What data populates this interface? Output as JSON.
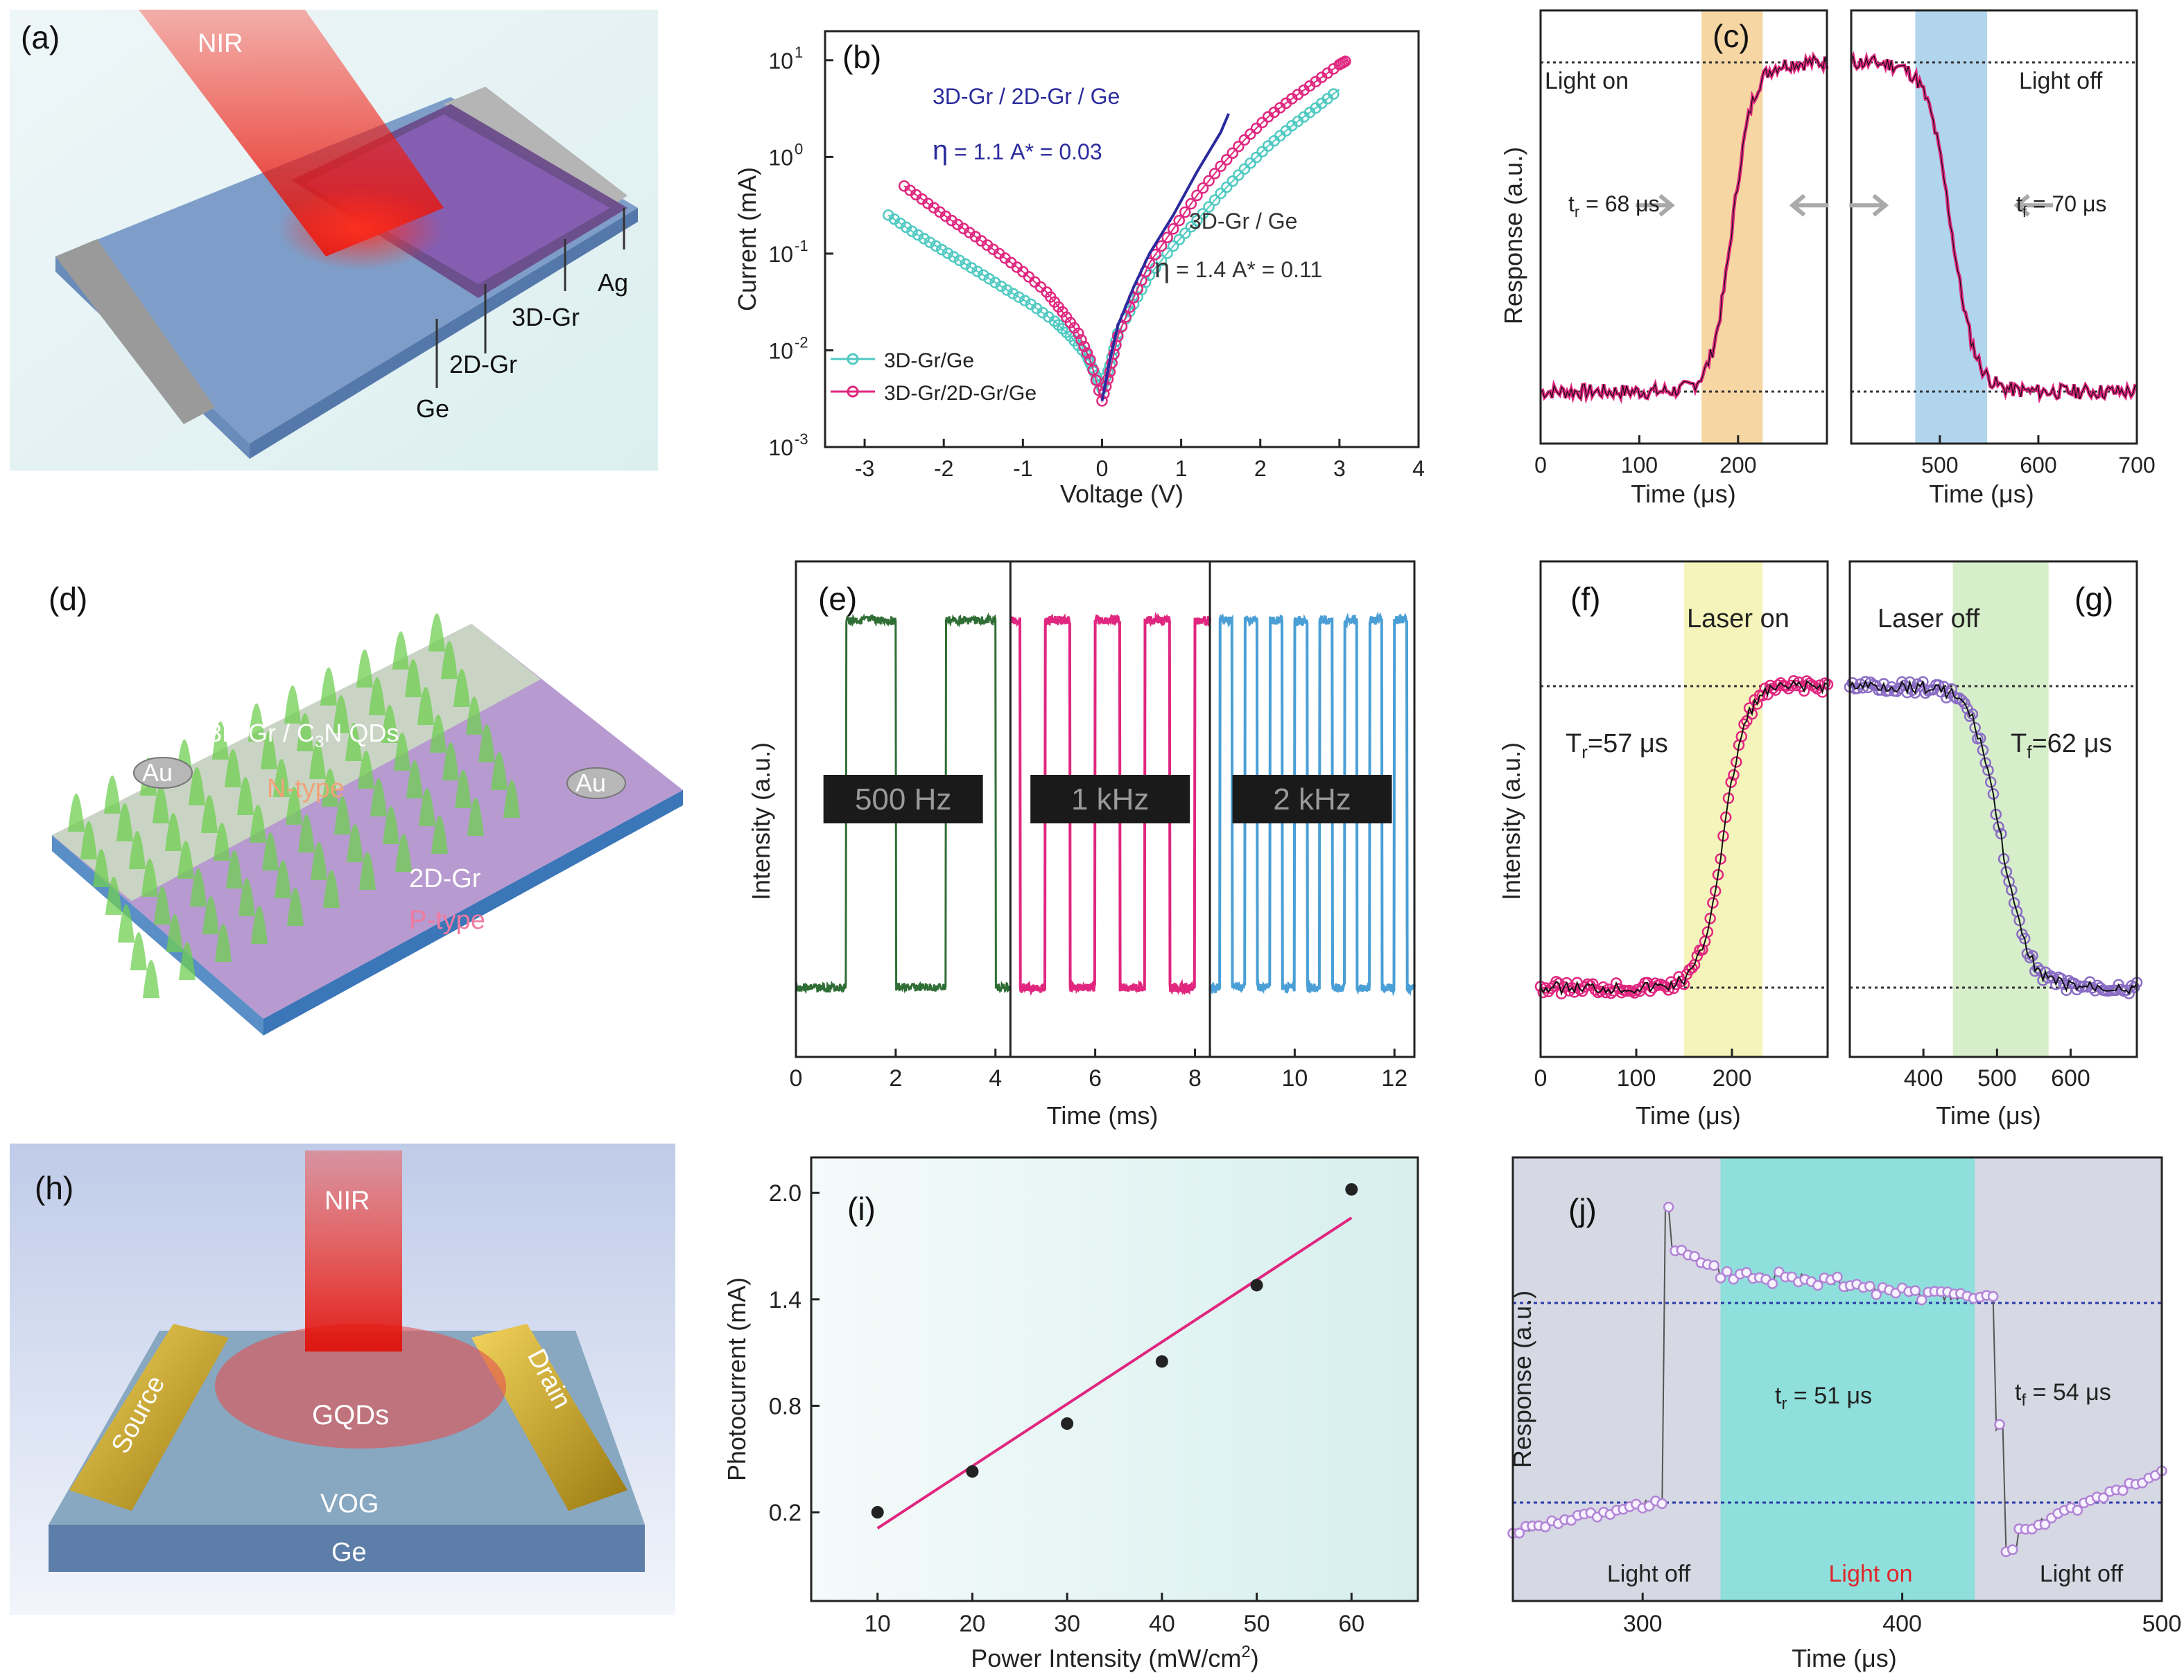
{
  "colors": {
    "cyan": "#4fc9c2",
    "magenta": "#e0267f",
    "navy": "#2b2b9e",
    "green": "#2f6e34",
    "pink": "#e0267f",
    "blue": "#4a9fd6",
    "purpleRing": "#8a6cc4",
    "violet": "#b184d6",
    "bandOrange": "#f2c57c",
    "bandBlue": "#8ec3e6",
    "bandYellow": "#f4f3b4",
    "bandGreen": "#d3ecc4",
    "bandTeal": "#8fe0dc",
    "panelGray": "#d6d8e3"
  },
  "labels": {
    "a": "(a)",
    "b": "(b)",
    "c": "(c)",
    "d": "(d)",
    "e": "(e)",
    "f": "(f)",
    "g": "(g)",
    "h": "(h)",
    "i": "(i)",
    "j": "(j)"
  },
  "illustration_a": {
    "beam": "NIR",
    "ag": "Ag",
    "gr3d": "3D-Gr",
    "gr2d": "2D-Gr",
    "ge": "Ge"
  },
  "illustration_d": {
    "top": "3D-Gr / C",
    "sub": "3",
    "top2": "N QDs",
    "ntype": "N-type",
    "au1": "Au",
    "au2": "Au",
    "gr2d": "2D-Gr",
    "ptype": "P-type"
  },
  "illustration_h": {
    "beam": "NIR",
    "source": "Source",
    "drain": "Drain",
    "gqds": "GQDs",
    "vog": "VOG",
    "ge": "Ge"
  },
  "chart_data": [
    {
      "id": "b",
      "type": "scatter",
      "xlabel": "Voltage (V)",
      "ylabel": "Current (mA)",
      "xlim": [
        -3.5,
        4
      ],
      "ylim_log10": [
        -3,
        1.3
      ],
      "yscale": "log",
      "xticks": [
        "-3",
        "-2",
        "-1",
        "0",
        "1",
        "2",
        "3",
        "4"
      ],
      "yticks": [
        "10",
        "10",
        "10",
        "10",
        "10"
      ],
      "ytick_exp": [
        "-3",
        "-2",
        "-1",
        "0",
        "1"
      ],
      "legend": [
        "3D-Gr/Ge",
        "3D-Gr/2D-Gr/Ge"
      ],
      "annotations": {
        "a1": "3D-Gr / 2D-Gr / Ge",
        "a2_eta": "η",
        "a2": " = 1.1   A* = 0.03",
        "a3": "3D-Gr / Ge",
        "a4_eta": "η",
        "a4": " = 1.4   A* = 0.11"
      },
      "series": [
        {
          "name": "3D-Gr/Ge",
          "x": [
            -2.7,
            -2.4,
            -2.1,
            -1.8,
            -1.5,
            -1.2,
            -0.9,
            -0.6,
            -0.4,
            -0.2,
            -0.1,
            0,
            0.1,
            0.2,
            0.4,
            0.6,
            0.9,
            1.2,
            1.5,
            1.8,
            2.1,
            2.4,
            2.7,
            3.0
          ],
          "y": [
            0.25,
            0.17,
            0.12,
            0.085,
            0.06,
            0.042,
            0.03,
            0.02,
            0.014,
            0.009,
            0.006,
            0.004,
            0.007,
            0.015,
            0.03,
            0.06,
            0.12,
            0.22,
            0.42,
            0.75,
            1.3,
            2.1,
            3.2,
            5.0
          ]
        },
        {
          "name": "3D-Gr/2D-Gr/Ge",
          "x": [
            -2.5,
            -2.2,
            -1.9,
            -1.6,
            -1.3,
            -1.0,
            -0.7,
            -0.5,
            -0.3,
            -0.15,
            0,
            0.1,
            0.2,
            0.4,
            0.6,
            0.9,
            1.2,
            1.5,
            1.8,
            2.1,
            2.4,
            2.7,
            3.0,
            3.1
          ],
          "y": [
            0.5,
            0.33,
            0.22,
            0.15,
            0.1,
            0.065,
            0.04,
            0.025,
            0.015,
            0.008,
            0.003,
            0.006,
            0.014,
            0.035,
            0.08,
            0.18,
            0.4,
            0.8,
            1.5,
            2.6,
            4.0,
            6.0,
            9.0,
            10.0
          ]
        },
        {
          "name": "fit",
          "x": [
            0,
            0.1,
            0.2,
            0.4,
            0.6,
            0.9,
            1.2,
            1.5,
            1.6
          ],
          "y": [
            0.003,
            0.008,
            0.018,
            0.045,
            0.1,
            0.25,
            0.7,
            1.8,
            2.8
          ]
        }
      ]
    },
    {
      "id": "c",
      "type": "line",
      "ylabel": "Response (a.u.)",
      "xlabel_left": "Time (μs)",
      "xlabel_right": "Time (μs)",
      "left": {
        "xlim": [
          0,
          290
        ],
        "xticks": [
          "0",
          "100",
          "200"
        ],
        "band": [
          163,
          225
        ],
        "title": "Light on",
        "note_t": "t",
        "note_sub": "r",
        "note": " = 68 μs",
        "hi": 0.88,
        "lo": 0.12
      },
      "right": {
        "xlim": [
          410,
          700
        ],
        "xticks": [
          "500",
          "600",
          "700"
        ],
        "band": [
          475,
          548
        ],
        "title": "Light off",
        "note_t": "t",
        "note_sub": "f",
        "note": " = 70 μs",
        "hi": 0.88,
        "lo": 0.12
      }
    },
    {
      "id": "e",
      "type": "line",
      "ylabel": "Intensity (a.u.)",
      "xlabel": "Time (ms)",
      "xlim": [
        0,
        12.4
      ],
      "xticks": [
        "0",
        "2",
        "4",
        "6",
        "8",
        "10",
        "12"
      ],
      "segments": [
        {
          "label": "500 Hz",
          "from": 0,
          "to": 4.3,
          "freq_khz": 0.5
        },
        {
          "label": "1 kHz",
          "from": 4.3,
          "to": 8.3,
          "freq_khz": 1
        },
        {
          "label": "2 kHz",
          "from": 8.3,
          "to": 12.4,
          "freq_khz": 2
        }
      ]
    },
    {
      "id": "fg",
      "type": "scatter",
      "ylabel": "Intensity (a.u.)",
      "xlabel_left": "Time (μs)",
      "xlabel_right": "Time (μs)",
      "left": {
        "xlim": [
          0,
          300
        ],
        "xticks": [
          "0",
          "100",
          "200"
        ],
        "band": [
          150,
          232
        ],
        "title": "Laser on",
        "note_t": "T",
        "note_sub": "r",
        "note": "=57 μs"
      },
      "right": {
        "xlim": [
          300,
          690
        ],
        "xticks": [
          "400",
          "500",
          "600"
        ],
        "band": [
          440,
          570
        ],
        "title": "Laser off",
        "note_t": "T",
        "note_sub": "f",
        "note": "=62 μs"
      }
    },
    {
      "id": "i",
      "type": "scatter",
      "xlabel": "Power Intensity (mW/cm",
      "xlabel_sup": "2",
      "xlabel_end": ")",
      "ylabel": "Photocurrent (mA)",
      "xlim": [
        3,
        67
      ],
      "ylim": [
        -0.3,
        2.2
      ],
      "xticks": [
        "10",
        "20",
        "30",
        "40",
        "50",
        "60"
      ],
      "yticks": [
        "0.2",
        "0.8",
        "1.4",
        "2.0"
      ],
      "x": [
        10,
        20,
        30,
        40,
        50,
        60
      ],
      "y": [
        0.2,
        0.43,
        0.7,
        1.05,
        1.48,
        2.02
      ],
      "fit": {
        "x": [
          10,
          60
        ],
        "y": [
          0.11,
          1.86
        ]
      }
    },
    {
      "id": "j",
      "type": "line",
      "xlabel": "Time (μs)",
      "ylabel": "Response (a.u.)",
      "xlim": [
        250,
        500
      ],
      "xticks": [
        "300",
        "400",
        "500"
      ],
      "band_on": [
        330,
        428
      ],
      "regions": [
        "Light off",
        "Light on",
        "Light off"
      ],
      "note_r_t": "t",
      "note_r_sub": "r",
      "note_r": " = 51 μs",
      "note_f_t": "t",
      "note_f_sub": "f",
      "note_f": " = 54 μs"
    }
  ]
}
